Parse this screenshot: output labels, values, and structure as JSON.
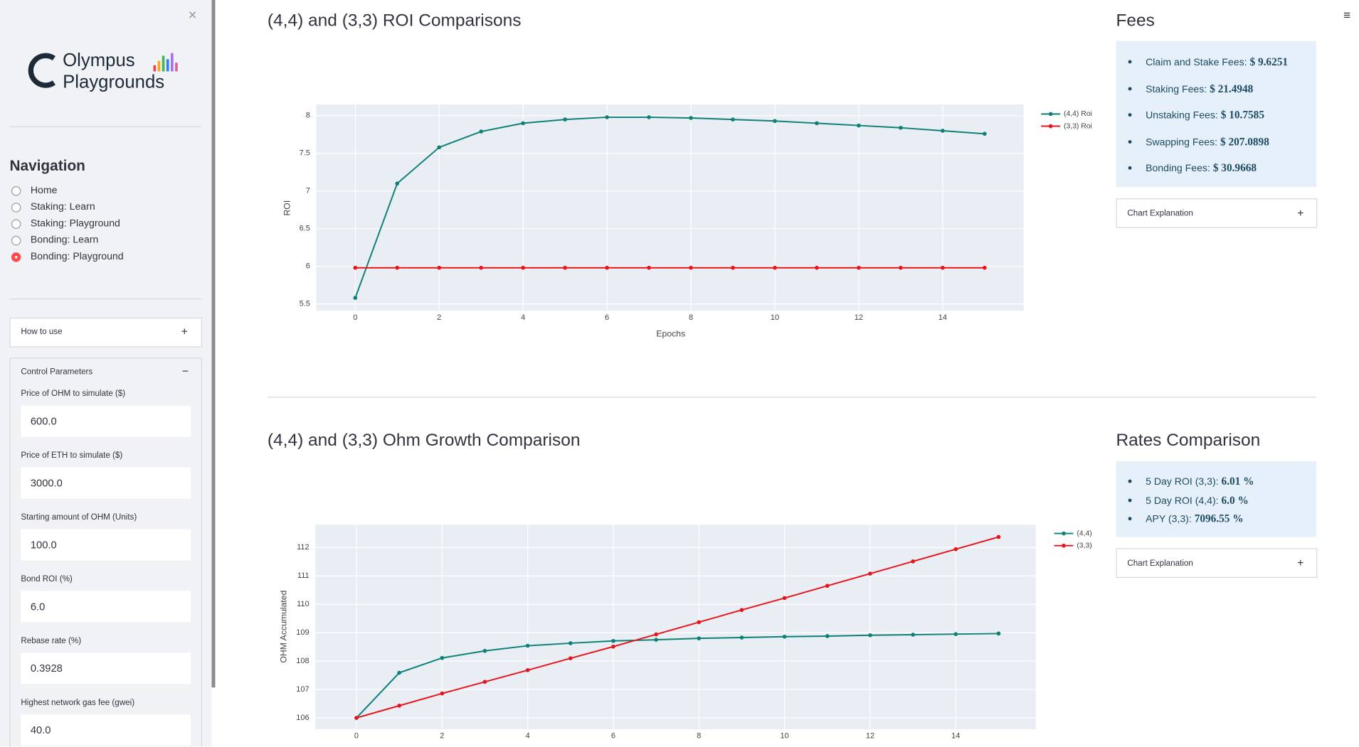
{
  "sidebar": {
    "logo_line1": "Olympus",
    "logo_line2": "Playgrounds",
    "navigation": {
      "title": "Navigation",
      "options": [
        "Home",
        "Staking: Learn",
        "Staking: Playground",
        "Bonding: Learn",
        "Bonding: Playground"
      ],
      "selected": 4
    },
    "how_to_use": "How to use",
    "control_parameters": {
      "title": "Control Parameters",
      "fields": [
        {
          "label": "Price of OHM to simulate ($)",
          "value": "600.0"
        },
        {
          "label": "Price of ETH to simulate ($)",
          "value": "3000.0"
        },
        {
          "label": "Starting amount of OHM (Units)",
          "value": "100.0"
        },
        {
          "label": "Bond ROI (%)",
          "value": "6.0"
        },
        {
          "label": "Rebase rate (%)",
          "value": "0.3928"
        },
        {
          "label": "Highest network gas fee (gwei)",
          "value": "40.0"
        }
      ]
    }
  },
  "chart_data": [
    {
      "type": "line",
      "title": "(4,4) and (3,3) ROI Comparisons",
      "x_label": "Epochs",
      "y_label": "ROI",
      "x": [
        0,
        1,
        2,
        3,
        4,
        5,
        6,
        7,
        8,
        9,
        10,
        11,
        12,
        13,
        14,
        15
      ],
      "series": [
        {
          "name": "(4,4) Roi",
          "color": "#0e8077",
          "values": [
            5.58,
            7.1,
            7.58,
            7.79,
            7.9,
            7.95,
            7.98,
            7.98,
            7.97,
            7.95,
            7.93,
            7.9,
            7.87,
            7.84,
            7.8,
            7.76
          ]
        },
        {
          "name": "(3,3) Roi",
          "color": "#e8141c",
          "values": [
            5.98,
            5.98,
            5.98,
            5.98,
            5.98,
            5.98,
            5.98,
            5.98,
            5.98,
            5.98,
            5.98,
            5.98,
            5.98,
            5.98,
            5.98,
            5.98
          ]
        }
      ],
      "xlim": [
        -0.93,
        15.93
      ],
      "ylim": [
        5.41,
        8.15
      ],
      "xticks": [
        0,
        2,
        4,
        6,
        8,
        10,
        12,
        14
      ],
      "yticks": [
        5.5,
        6,
        6.5,
        7,
        7.5,
        8
      ],
      "grid": true,
      "legend": "top-right-outside"
    },
    {
      "type": "line",
      "title": "(4,4) and (3,3) Ohm Growth Comparison",
      "x_label": "Epochs",
      "y_label": "OHM Accumulated",
      "x": [
        0,
        1,
        2,
        3,
        4,
        5,
        6,
        7,
        8,
        9,
        10,
        11,
        12,
        13,
        14,
        15
      ],
      "series": [
        {
          "name": "(4,4)",
          "color": "#0e8077",
          "values": [
            106.0,
            107.59,
            108.11,
            108.36,
            108.54,
            108.63,
            108.71,
            108.75,
            108.8,
            108.83,
            108.86,
            108.88,
            108.91,
            108.93,
            108.95,
            108.97
          ]
        },
        {
          "name": "(3,3)",
          "color": "#e8141c",
          "values": [
            106.0,
            106.43,
            106.86,
            107.27,
            107.68,
            108.1,
            108.51,
            108.94,
            109.37,
            109.8,
            110.22,
            110.65,
            111.08,
            111.51,
            111.94,
            112.37
          ]
        }
      ],
      "xlim": [
        -0.96,
        15.87
      ],
      "ylim": [
        105.6,
        112.8
      ],
      "xticks": [
        0,
        2,
        4,
        6,
        8,
        10,
        12,
        14
      ],
      "yticks": [
        106,
        107,
        108,
        109,
        110,
        111,
        112
      ],
      "grid": true,
      "legend": "top-right-outside"
    }
  ],
  "fees": {
    "title": "Fees",
    "items": [
      {
        "label": "Claim and Stake Fees:",
        "value": "$ 9.6251"
      },
      {
        "label": "Staking Fees:",
        "value": "$ 21.4948"
      },
      {
        "label": "Unstaking Fees:",
        "value": "$ 10.7585"
      },
      {
        "label": "Swapping Fees:",
        "value": "$ 207.0898"
      },
      {
        "label": "Bonding Fees:",
        "value": "$ 30.9668"
      }
    ],
    "expander": "Chart Explanation"
  },
  "rates": {
    "title": "Rates Comparison",
    "items": [
      {
        "label": "5 Day ROI (3,3):",
        "value": "6.01 %"
      },
      {
        "label": "5 Day ROI (4,4):",
        "value": "6.0 %"
      },
      {
        "label": "APY (3,3):",
        "value": "7096.55 %"
      }
    ],
    "expander": "Chart Explanation"
  }
}
